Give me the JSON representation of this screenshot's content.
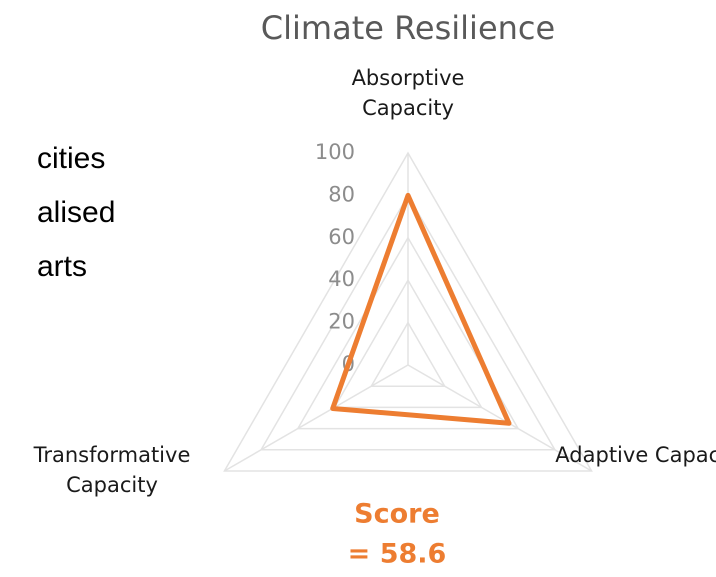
{
  "slide_text": [
    "cities",
    "alised",
    "arts"
  ],
  "chart_data": {
    "type": "radar",
    "title": "Climate Resilience",
    "categories": [
      "Absorptive Capacity",
      "Adaptive Capacity",
      "Transformative Capacity"
    ],
    "series": [
      {
        "name": "Score",
        "color": "#ED7D31",
        "values": [
          80,
          55,
          41
        ]
      }
    ],
    "ylim": [
      0,
      100
    ],
    "yticks": [
      0,
      20,
      40,
      60,
      80,
      100
    ],
    "grid": true,
    "annotations": [
      "Score",
      "= 58.6"
    ]
  }
}
